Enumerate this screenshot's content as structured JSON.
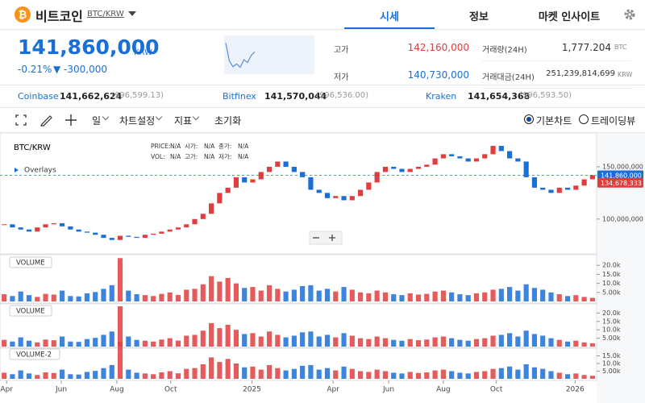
{
  "header": {
    "coin_name": "비트코인",
    "pair": "BTC/KRW",
    "tabs": [
      "시세",
      "정보",
      "마켓 인사이트"
    ],
    "active_tab": 0
  },
  "ticker": {
    "price": "141,860,000",
    "currency": "KRW",
    "change_rate": "-0.21%",
    "change": "▼ -300,000",
    "stats": [
      {
        "label": "고가",
        "value": "142,160,000",
        "color": "#e03e3e"
      },
      {
        "label": "저가",
        "value": "140,730,000",
        "color": "#1a6fd6"
      }
    ],
    "stats24h": [
      {
        "label": "거래량(24H)",
        "value": "1,777.204",
        "unit": "BTC"
      },
      {
        "label": "거래대금(24H)",
        "value": "251,239,814,699",
        "unit": "KRW"
      }
    ],
    "mini_chart": {
      "values": [
        142500000,
        141200000,
        140800000,
        141000000,
        140750000,
        141300000,
        141100000,
        141600000,
        141860000
      ],
      "ylim": [
        140500000,
        142800000
      ]
    }
  },
  "exchanges": [
    {
      "name": "Coinbase",
      "price": "141,662,624",
      "usd": "($96,599.13)"
    },
    {
      "name": "Bitfinex",
      "price": "141,570,044",
      "usd": "($96,536.00)"
    },
    {
      "name": "Kraken",
      "price": "141,654,368",
      "usd": "($96,593.50)"
    }
  ],
  "toolbar": {
    "items": [
      "일",
      "차트설정",
      "지표",
      "초기화"
    ],
    "modes": [
      "기본차트",
      "트레이딩뷰"
    ],
    "selected_mode": 0
  },
  "chart_data": {
    "type": "candlestick",
    "title": "BTC/KRW",
    "overlay_label": "Overlays",
    "ohlc_legend": [
      [
        "PRICE:",
        "N/A"
      ],
      [
        "시가:",
        "N/A"
      ],
      [
        "종가:",
        "N/A"
      ],
      [
        "VOL:",
        "N/A"
      ],
      [
        "고가:",
        "N/A"
      ],
      [
        "저가:",
        "N/A"
      ]
    ],
    "up_color": "#e03e3e",
    "down_color": "#1a6fd6",
    "closes": [
      95000000,
      92000000,
      90000000,
      88000000,
      92000000,
      95000000,
      96000000,
      93000000,
      90000000,
      88000000,
      87000000,
      85000000,
      82000000,
      80000000,
      84000000,
      83000000,
      82000000,
      85000000,
      86000000,
      88000000,
      90000000,
      92000000,
      95000000,
      100000000,
      105000000,
      115000000,
      125000000,
      130000000,
      140000000,
      135000000,
      138000000,
      145000000,
      150000000,
      155000000,
      150000000,
      145000000,
      140000000,
      128000000,
      125000000,
      120000000,
      122000000,
      118000000,
      122000000,
      128000000,
      135000000,
      145000000,
      150000000,
      148000000,
      145000000,
      148000000,
      150000000,
      152000000,
      158000000,
      162000000,
      160000000,
      158000000,
      155000000,
      158000000,
      162000000,
      170000000,
      165000000,
      158000000,
      155000000,
      140000000,
      130000000,
      128000000,
      125000000,
      130000000,
      128000000,
      132000000,
      138000000,
      142000000
    ],
    "xlim": [
      -0.5,
      71.5
    ],
    "xticks": [
      {
        "value": 0.3,
        "label": "Apr"
      },
      {
        "value": 6.9,
        "label": "Jun"
      },
      {
        "value": 13.6,
        "label": "Aug"
      },
      {
        "value": 20.1,
        "label": "Oct"
      },
      {
        "value": 29.9,
        "label": "2025"
      },
      {
        "value": 39.7,
        "label": "Apr"
      },
      {
        "value": 46.4,
        "label": "Jun"
      },
      {
        "value": 53,
        "label": "Aug"
      },
      {
        "value": 59.4,
        "label": "Oct"
      },
      {
        "value": 68.9,
        "label": "2026"
      }
    ],
    "ylim": [
      69000000,
      180000000
    ],
    "yticks": [
      {
        "value": 100000000,
        "label": "100,000,000"
      },
      {
        "value": 150000000,
        "label": "150,000,000"
      }
    ],
    "price_tags": [
      {
        "value": 141860000,
        "label": "141,860,000",
        "color": "#1a6fd6"
      },
      {
        "value": 134678333,
        "label": "134,678,333",
        "color": "#e03e3e"
      }
    ],
    "volume": {
      "values": [
        4000,
        3000,
        5500,
        3500,
        2500,
        4200,
        3800,
        6000,
        3000,
        2800,
        4500,
        5200,
        7000,
        9000,
        24000,
        6000,
        4000,
        3500,
        3000,
        4200,
        5000,
        3600,
        6500,
        7000,
        9500,
        14000,
        11000,
        13000,
        10000,
        7500,
        8000,
        6000,
        9000,
        7000,
        5500,
        6500,
        8500,
        9000,
        6000,
        7000,
        5500,
        8000,
        6500,
        5000,
        4500,
        6000,
        5000,
        4000,
        3500,
        4500,
        3800,
        4200,
        5500,
        6000,
        5000,
        4000,
        3500,
        4500,
        5000,
        6500,
        7000,
        8000,
        6000,
        9500,
        7500,
        6500,
        5000,
        4000,
        3000,
        3500,
        2500,
        2000
      ],
      "panels": [
        {
          "name": "VOLUME",
          "ylim": [
            0,
            25000
          ],
          "yticks": [
            {
              "value": 5000,
              "label": "5.00k"
            },
            {
              "value": 10000,
              "label": "10.0k"
            },
            {
              "value": 15000,
              "label": "15.0k"
            },
            {
              "value": 20000,
              "label": "20.0k"
            }
          ]
        },
        {
          "name": "VOLUME",
          "ylim": [
            0,
            25000
          ],
          "yticks": [
            {
              "value": 5000,
              "label": "5.00k"
            },
            {
              "value": 10000,
              "label": "10.0k"
            },
            {
              "value": 15000,
              "label": "15.0k"
            },
            {
              "value": 20000,
              "label": "20.0k"
            }
          ]
        },
        {
          "name": "VOLUME-2",
          "ylim": [
            0,
            20000
          ],
          "yticks": [
            {
              "value": 5000,
              "label": "5.00k"
            },
            {
              "value": 10000,
              "label": "10.0k"
            },
            {
              "value": 15000,
              "label": "15.0k"
            }
          ]
        }
      ]
    }
  }
}
